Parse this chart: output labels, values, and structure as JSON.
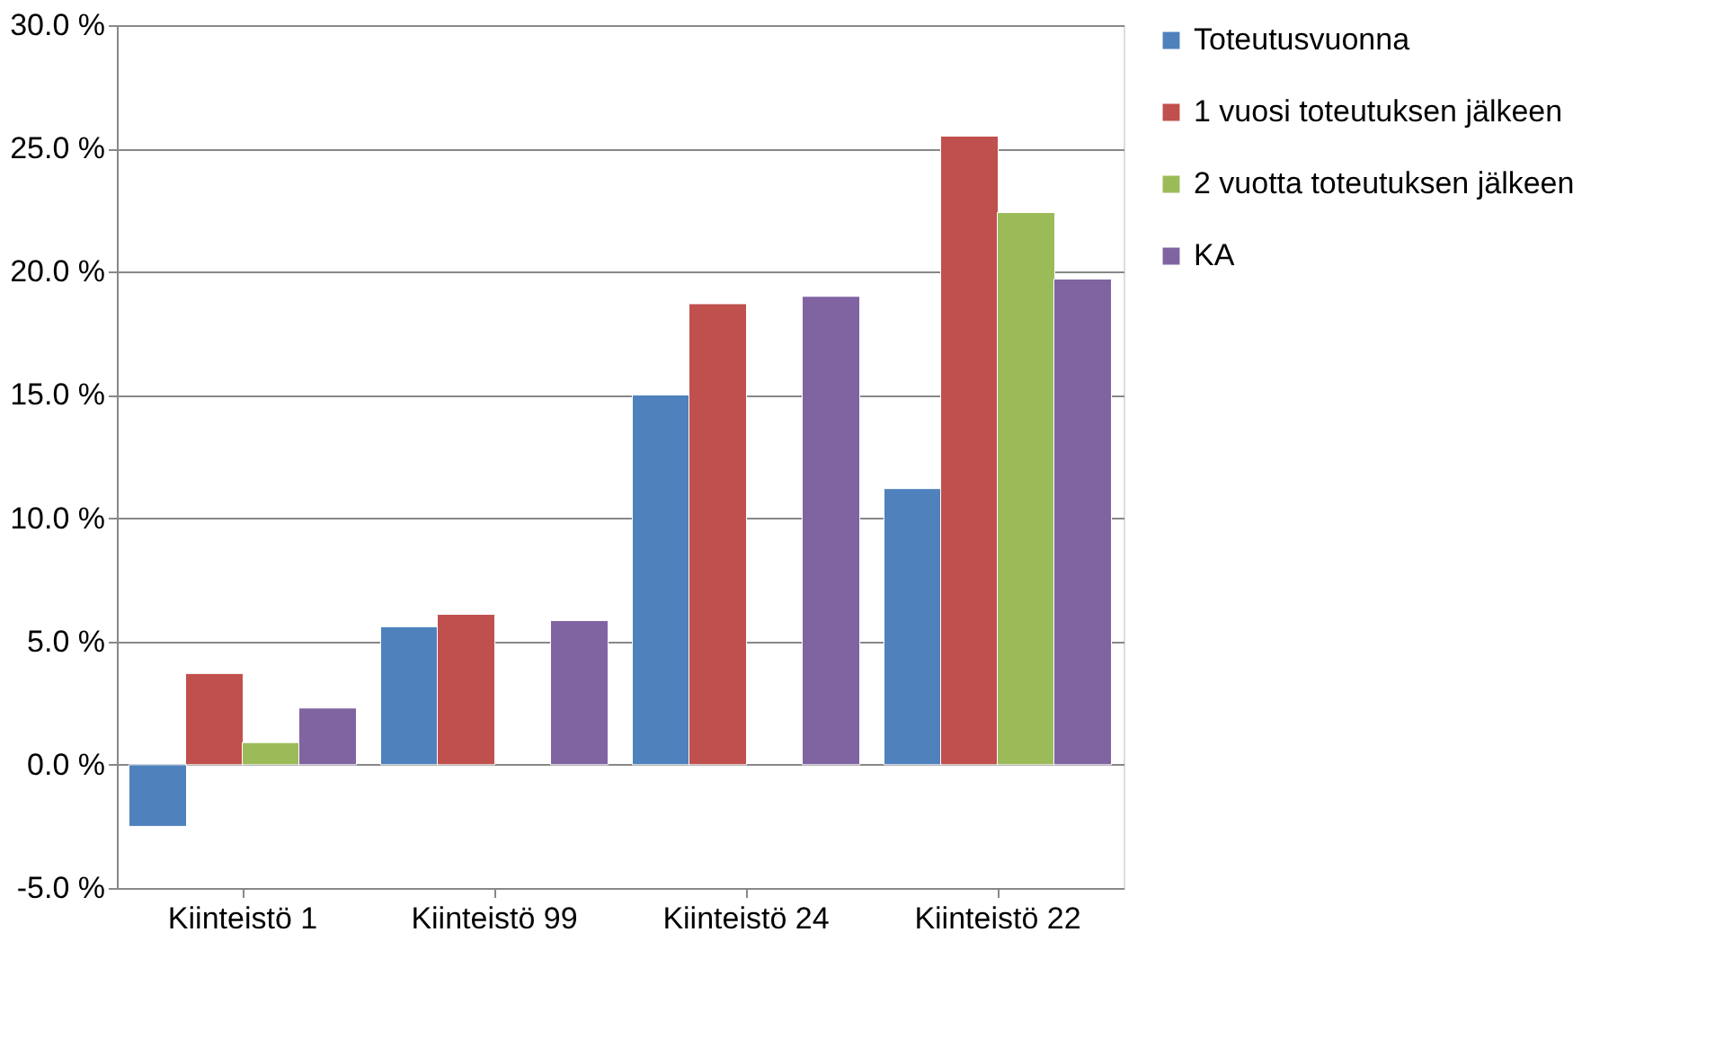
{
  "chart_data": {
    "type": "bar",
    "categories": [
      "Kiinteistö 1",
      "Kiinteistö 99",
      "Kiinteistö 24",
      "Kiinteistö 22"
    ],
    "series": [
      {
        "name": "Toteutusvuonna",
        "color": "#4f81bd",
        "values": [
          -2.5,
          5.6,
          15.0,
          11.2
        ]
      },
      {
        "name": "1 vuosi toteutuksen jälkeen",
        "color": "#c0504d",
        "values": [
          3.7,
          6.1,
          18.7,
          25.5
        ]
      },
      {
        "name": "2 vuotta toteutuksen jälkeen",
        "color": "#9bbb59",
        "values": [
          0.9,
          null,
          null,
          22.4
        ]
      },
      {
        "name": "KA",
        "color": "#8064a2",
        "values": [
          2.3,
          5.85,
          19.0,
          19.7
        ]
      }
    ],
    "ylim": [
      -5,
      30
    ],
    "yticks": [
      {
        "value": -5,
        "label": "-5.0 %"
      },
      {
        "value": 0,
        "label": "0.0 %"
      },
      {
        "value": 5,
        "label": "5.0 %"
      },
      {
        "value": 10,
        "label": "10.0 %"
      },
      {
        "value": 15,
        "label": "15.0 %"
      },
      {
        "value": 20,
        "label": "20.0 %"
      },
      {
        "value": 25,
        "label": "25.0 %"
      },
      {
        "value": 30,
        "label": "30.0 %"
      }
    ],
    "grid": "y",
    "legend": "right"
  }
}
